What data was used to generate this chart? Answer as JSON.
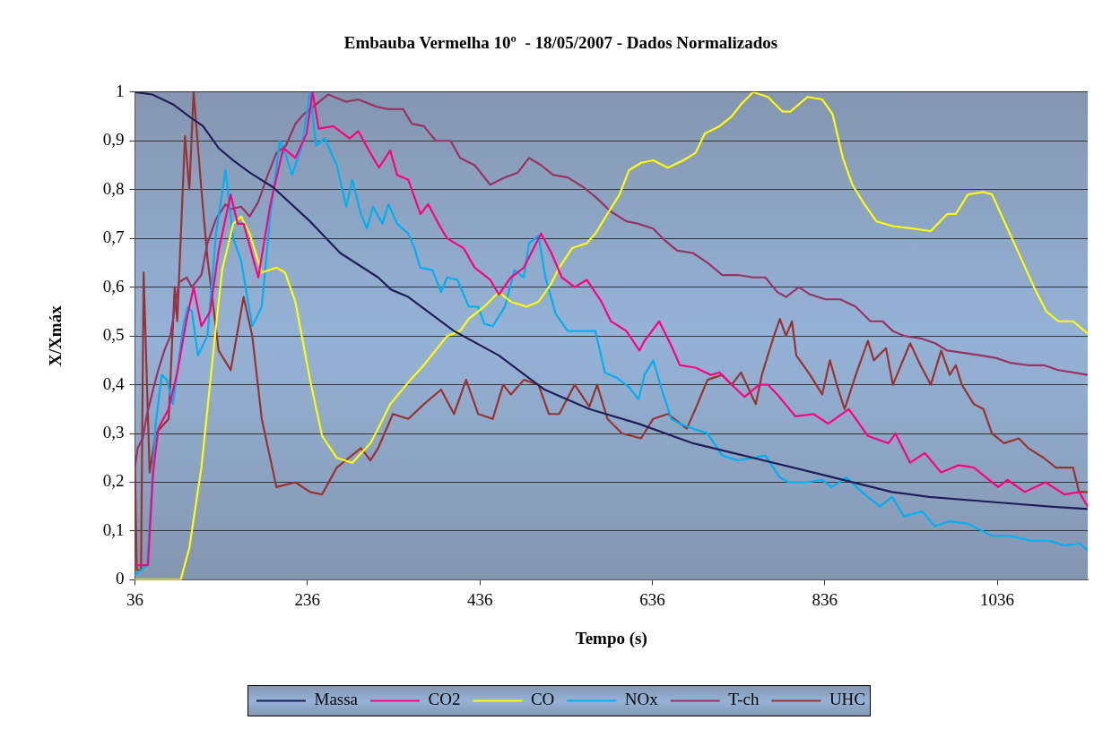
{
  "chart_data": {
    "type": "line",
    "title": "Embauba Vermelha 10º  - 18/05/2007 - Dados Normalizados",
    "xlabel": "Tempo (s)",
    "ylabel": "X/Xmáx",
    "xlim": [
      36,
      1141
    ],
    "xticks": [
      36,
      236,
      436,
      636,
      836,
      1036
    ],
    "ylim": [
      0,
      1
    ],
    "yticks": [
      0,
      {
        "value": 0.1,
        "label": "0,1"
      },
      {
        "value": 0.2,
        "label": "0,2"
      },
      {
        "value": 0.3,
        "label": "0,3"
      },
      {
        "value": 0.4,
        "label": "0,4"
      },
      {
        "value": 0.5,
        "label": "0,5"
      },
      {
        "value": 0.6,
        "label": "0,6"
      },
      {
        "value": 0.7,
        "label": "0,7"
      },
      {
        "value": 0.8,
        "label": "0,8"
      },
      {
        "value": 0.9,
        "label": "0,9"
      },
      1
    ],
    "grid": "y",
    "legend": "bottom",
    "marker": "none",
    "series": [
      {
        "name": "Massa",
        "color": "#1f1f5a",
        "x": [
          36,
          56,
          80,
          99,
          115,
          133,
          150,
          169,
          196,
          239,
          274,
          318,
          333,
          353,
          406,
          458,
          511,
          563,
          620,
          683,
          753,
          823,
          914,
          957,
          1027,
          1097,
          1141
        ],
        "values": [
          1.0,
          0.995,
          0.975,
          0.95,
          0.93,
          0.885,
          0.86,
          0.835,
          0.805,
          0.735,
          0.67,
          0.62,
          0.595,
          0.58,
          0.51,
          0.46,
          0.39,
          0.35,
          0.32,
          0.28,
          0.25,
          0.22,
          0.18,
          0.17,
          0.16,
          0.15,
          0.145
        ]
      },
      {
        "name": "CO2",
        "color": "#ff0080",
        "x": [
          36,
          51,
          57,
          63,
          75,
          85,
          96,
          104,
          113,
          123,
          133,
          147,
          155,
          162,
          179,
          193,
          208,
          222,
          235,
          242,
          249,
          266,
          285,
          295,
          309,
          319,
          332,
          340,
          353,
          367,
          376,
          388,
          398,
          417,
          430,
          448,
          458,
          472,
          487,
          507,
          519,
          531,
          546,
          560,
          577,
          588,
          606,
          621,
          627,
          644,
          658,
          668,
          686,
          704,
          714,
          728,
          743,
          760,
          770,
          781,
          802,
          823,
          840,
          864,
          886,
          910,
          918,
          935,
          952,
          971,
          991,
          1009,
          1037,
          1048,
          1068,
          1092,
          1114,
          1131,
          1141
        ],
        "values": [
          0.03,
          0.03,
          0.22,
          0.31,
          0.35,
          0.425,
          0.535,
          0.6,
          0.52,
          0.55,
          0.675,
          0.79,
          0.73,
          0.73,
          0.62,
          0.77,
          0.885,
          0.865,
          0.915,
          1.0,
          0.925,
          0.93,
          0.905,
          0.92,
          0.875,
          0.845,
          0.88,
          0.83,
          0.82,
          0.75,
          0.77,
          0.73,
          0.7,
          0.68,
          0.64,
          0.615,
          0.585,
          0.62,
          0.64,
          0.71,
          0.67,
          0.62,
          0.6,
          0.615,
          0.57,
          0.53,
          0.51,
          0.47,
          0.49,
          0.53,
          0.48,
          0.44,
          0.435,
          0.42,
          0.425,
          0.4,
          0.375,
          0.4,
          0.4,
          0.38,
          0.335,
          0.34,
          0.32,
          0.35,
          0.295,
          0.28,
          0.3,
          0.24,
          0.26,
          0.22,
          0.235,
          0.23,
          0.19,
          0.205,
          0.18,
          0.2,
          0.175,
          0.18,
          0.15
        ]
      },
      {
        "name": "CO",
        "color": "#ffff00",
        "x": [
          36,
          89,
          99,
          113,
          127,
          137,
          150,
          159,
          169,
          183,
          200,
          210,
          222,
          239,
          253,
          270,
          288,
          309,
          318,
          332,
          353,
          371,
          398,
          413,
          423,
          441,
          458,
          472,
          490,
          504,
          518,
          528,
          543,
          560,
          570,
          584,
          598,
          609,
          623,
          637,
          654,
          672,
          686,
          697,
          714,
          728,
          739,
          753,
          770,
          787,
          796,
          816,
          833,
          845,
          857,
          868,
          882,
          896,
          915,
          939,
          959,
          978,
          988,
          1002,
          1020,
          1030,
          1048,
          1066,
          1080,
          1093,
          1107,
          1124,
          1141
        ],
        "values": [
          0,
          0,
          0.065,
          0.23,
          0.47,
          0.635,
          0.73,
          0.745,
          0.71,
          0.63,
          0.64,
          0.63,
          0.57,
          0.41,
          0.295,
          0.25,
          0.24,
          0.28,
          0.31,
          0.36,
          0.405,
          0.44,
          0.5,
          0.51,
          0.535,
          0.56,
          0.59,
          0.57,
          0.56,
          0.57,
          0.605,
          0.64,
          0.68,
          0.69,
          0.71,
          0.75,
          0.79,
          0.84,
          0.855,
          0.86,
          0.845,
          0.86,
          0.875,
          0.915,
          0.93,
          0.95,
          0.975,
          1.0,
          0.99,
          0.96,
          0.96,
          0.99,
          0.985,
          0.955,
          0.865,
          0.81,
          0.77,
          0.735,
          0.725,
          0.72,
          0.715,
          0.75,
          0.75,
          0.79,
          0.795,
          0.79,
          0.72,
          0.65,
          0.595,
          0.55,
          0.53,
          0.53,
          0.505
        ]
      },
      {
        "name": "NOx",
        "color": "#00b0f0",
        "x": [
          36,
          50,
          60,
          67,
          73,
          80,
          92,
          97,
          102,
          109,
          120,
          130,
          141,
          150,
          159,
          172,
          183,
          193,
          204,
          211,
          218,
          229,
          239,
          246,
          256,
          270,
          281,
          288,
          298,
          305,
          312,
          323,
          330,
          340,
          353,
          360,
          367,
          381,
          391,
          398,
          410,
          423,
          434,
          441,
          451,
          465,
          476,
          487,
          493,
          504,
          512,
          524,
          538,
          550,
          560,
          570,
          581,
          594,
          609,
          620,
          627,
          637,
          647,
          658,
          668,
          683,
          700,
          717,
          735,
          753,
          767,
          784,
          794,
          816,
          833,
          844,
          861,
          879,
          900,
          914,
          928,
          949,
          964,
          981,
          1002,
          1030,
          1051,
          1075,
          1097,
          1114,
          1131,
          1141
        ],
        "values": [
          0.01,
          0.03,
          0.32,
          0.42,
          0.41,
          0.36,
          0.52,
          0.56,
          0.55,
          0.46,
          0.5,
          0.71,
          0.84,
          0.7,
          0.655,
          0.52,
          0.56,
          0.75,
          0.9,
          0.87,
          0.83,
          0.885,
          1.0,
          0.89,
          0.905,
          0.85,
          0.765,
          0.82,
          0.75,
          0.72,
          0.765,
          0.73,
          0.77,
          0.73,
          0.71,
          0.68,
          0.64,
          0.635,
          0.59,
          0.62,
          0.615,
          0.56,
          0.56,
          0.525,
          0.52,
          0.56,
          0.635,
          0.62,
          0.69,
          0.705,
          0.62,
          0.545,
          0.51,
          0.51,
          0.51,
          0.51,
          0.425,
          0.415,
          0.395,
          0.37,
          0.42,
          0.45,
          0.39,
          0.33,
          0.32,
          0.31,
          0.3,
          0.255,
          0.245,
          0.25,
          0.255,
          0.21,
          0.2,
          0.2,
          0.205,
          0.19,
          0.21,
          0.18,
          0.15,
          0.17,
          0.13,
          0.14,
          0.11,
          0.12,
          0.115,
          0.09,
          0.09,
          0.08,
          0.08,
          0.07,
          0.075,
          0.06
        ]
      },
      {
        "name": "T-ch",
        "color": "#993366",
        "x": [
          36,
          39,
          45,
          50,
          57,
          63,
          70,
          77,
          87,
          96,
          102,
          113,
          120,
          130,
          141,
          147,
          159,
          169,
          179,
          190,
          200,
          211,
          222,
          232,
          246,
          260,
          281,
          295,
          316,
          330,
          347,
          357,
          371,
          385,
          402,
          413,
          430,
          448,
          465,
          480,
          493,
          507,
          521,
          538,
          556,
          570,
          588,
          606,
          620,
          637,
          651,
          665,
          683,
          700,
          717,
          735,
          753,
          767,
          781,
          791,
          806,
          819,
          837,
          854,
          872,
          889,
          903,
          915,
          928,
          947,
          964,
          978,
          998,
          1017,
          1034,
          1051,
          1072,
          1090,
          1107,
          1124,
          1141
        ],
        "values": [
          0.23,
          0.27,
          0.29,
          0.34,
          0.39,
          0.43,
          0.47,
          0.5,
          0.61,
          0.62,
          0.6,
          0.625,
          0.69,
          0.74,
          0.77,
          0.76,
          0.765,
          0.745,
          0.775,
          0.83,
          0.875,
          0.89,
          0.935,
          0.955,
          0.975,
          0.995,
          0.98,
          0.985,
          0.97,
          0.965,
          0.965,
          0.935,
          0.93,
          0.9,
          0.9,
          0.865,
          0.85,
          0.81,
          0.825,
          0.835,
          0.865,
          0.85,
          0.83,
          0.825,
          0.805,
          0.785,
          0.755,
          0.735,
          0.73,
          0.72,
          0.695,
          0.675,
          0.67,
          0.65,
          0.625,
          0.625,
          0.62,
          0.62,
          0.59,
          0.58,
          0.6,
          0.585,
          0.575,
          0.575,
          0.56,
          0.53,
          0.53,
          0.51,
          0.5,
          0.495,
          0.485,
          0.47,
          0.465,
          0.46,
          0.455,
          0.445,
          0.44,
          0.44,
          0.43,
          0.425,
          0.42
        ]
      },
      {
        "name": "UHC",
        "color": "#993333",
        "x": [
          36,
          38,
          43,
          46,
          53,
          60,
          75,
          82,
          85,
          94,
          99,
          104,
          113,
          120,
          133,
          147,
          162,
          172,
          183,
          200,
          222,
          239,
          253,
          270,
          298,
          309,
          318,
          335,
          353,
          371,
          391,
          406,
          420,
          434,
          451,
          463,
          472,
          487,
          504,
          516,
          528,
          546,
          563,
          572,
          584,
          601,
          623,
          637,
          654,
          676,
          686,
          700,
          717,
          728,
          739,
          756,
          763,
          777,
          784,
          791,
          798,
          803,
          819,
          833,
          842,
          850,
          859,
          872,
          886,
          893,
          907,
          915,
          935,
          947,
          959,
          971,
          981,
          988,
          995,
          1009,
          1020,
          1030,
          1044,
          1061,
          1072,
          1090,
          1104,
          1124,
          1131,
          1141
        ],
        "values": [
          0.23,
          0.02,
          0.02,
          0.63,
          0.22,
          0.3,
          0.33,
          0.6,
          0.53,
          0.91,
          0.8,
          1.0,
          0.8,
          0.66,
          0.47,
          0.43,
          0.58,
          0.5,
          0.33,
          0.19,
          0.2,
          0.18,
          0.175,
          0.23,
          0.27,
          0.245,
          0.27,
          0.34,
          0.33,
          0.36,
          0.39,
          0.34,
          0.41,
          0.34,
          0.33,
          0.4,
          0.38,
          0.41,
          0.4,
          0.34,
          0.34,
          0.4,
          0.355,
          0.4,
          0.33,
          0.3,
          0.29,
          0.33,
          0.34,
          0.31,
          0.35,
          0.41,
          0.42,
          0.4,
          0.425,
          0.36,
          0.42,
          0.5,
          0.535,
          0.5,
          0.53,
          0.46,
          0.42,
          0.38,
          0.45,
          0.4,
          0.35,
          0.42,
          0.49,
          0.45,
          0.475,
          0.4,
          0.485,
          0.44,
          0.4,
          0.47,
          0.42,
          0.44,
          0.4,
          0.36,
          0.35,
          0.3,
          0.28,
          0.29,
          0.27,
          0.25,
          0.23,
          0.23,
          0.18,
          0.18
        ]
      }
    ]
  }
}
